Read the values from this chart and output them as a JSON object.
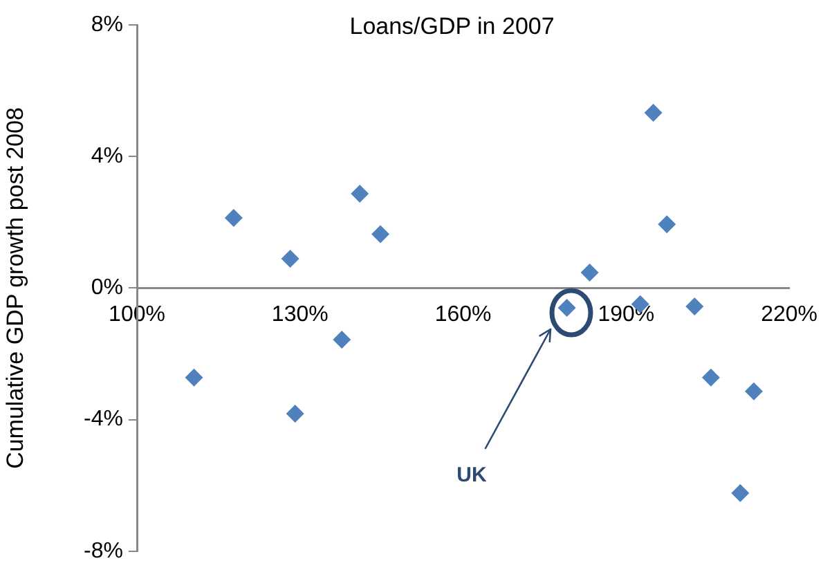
{
  "chart_data": {
    "type": "scatter",
    "title": "Loans/GDP in 2007",
    "ylabel": "Cumulative GDP growth post 2008",
    "x": [
      117.8,
      128.2,
      141.0,
      144.8,
      110.5,
      129.1,
      137.7,
      195.0,
      197.5,
      183.3,
      179.1,
      192.6,
      202.6,
      205.6,
      213.5,
      211.0
    ],
    "series": [
      {
        "color": "#4f81bd",
        "values": [
          2.13,
          0.89,
          2.87,
          1.64,
          -2.72,
          -3.82,
          -1.57,
          5.33,
          1.94,
          0.47,
          -0.6,
          -0.49,
          -0.56,
          -2.72,
          -3.14,
          -6.23
        ]
      }
    ],
    "xlim": [
      100,
      220
    ],
    "xticks": [
      {
        "value": 100,
        "label": "100%"
      },
      {
        "value": 130,
        "label": "130%"
      },
      {
        "value": 160,
        "label": "160%"
      },
      {
        "value": 190,
        "label": "190%"
      },
      {
        "value": 220,
        "label": "220%"
      }
    ],
    "ylim": [
      -8,
      8
    ],
    "yticks": [
      {
        "value": -8,
        "label": "-8%"
      },
      {
        "value": -4,
        "label": "-4%"
      },
      {
        "value": 0,
        "label": "0%"
      },
      {
        "value": 4,
        "label": "4%"
      },
      {
        "value": 8,
        "label": "8%"
      }
    ],
    "marker": "diamond",
    "grid": false,
    "legend": false,
    "annotations": [
      "UK"
    ]
  }
}
